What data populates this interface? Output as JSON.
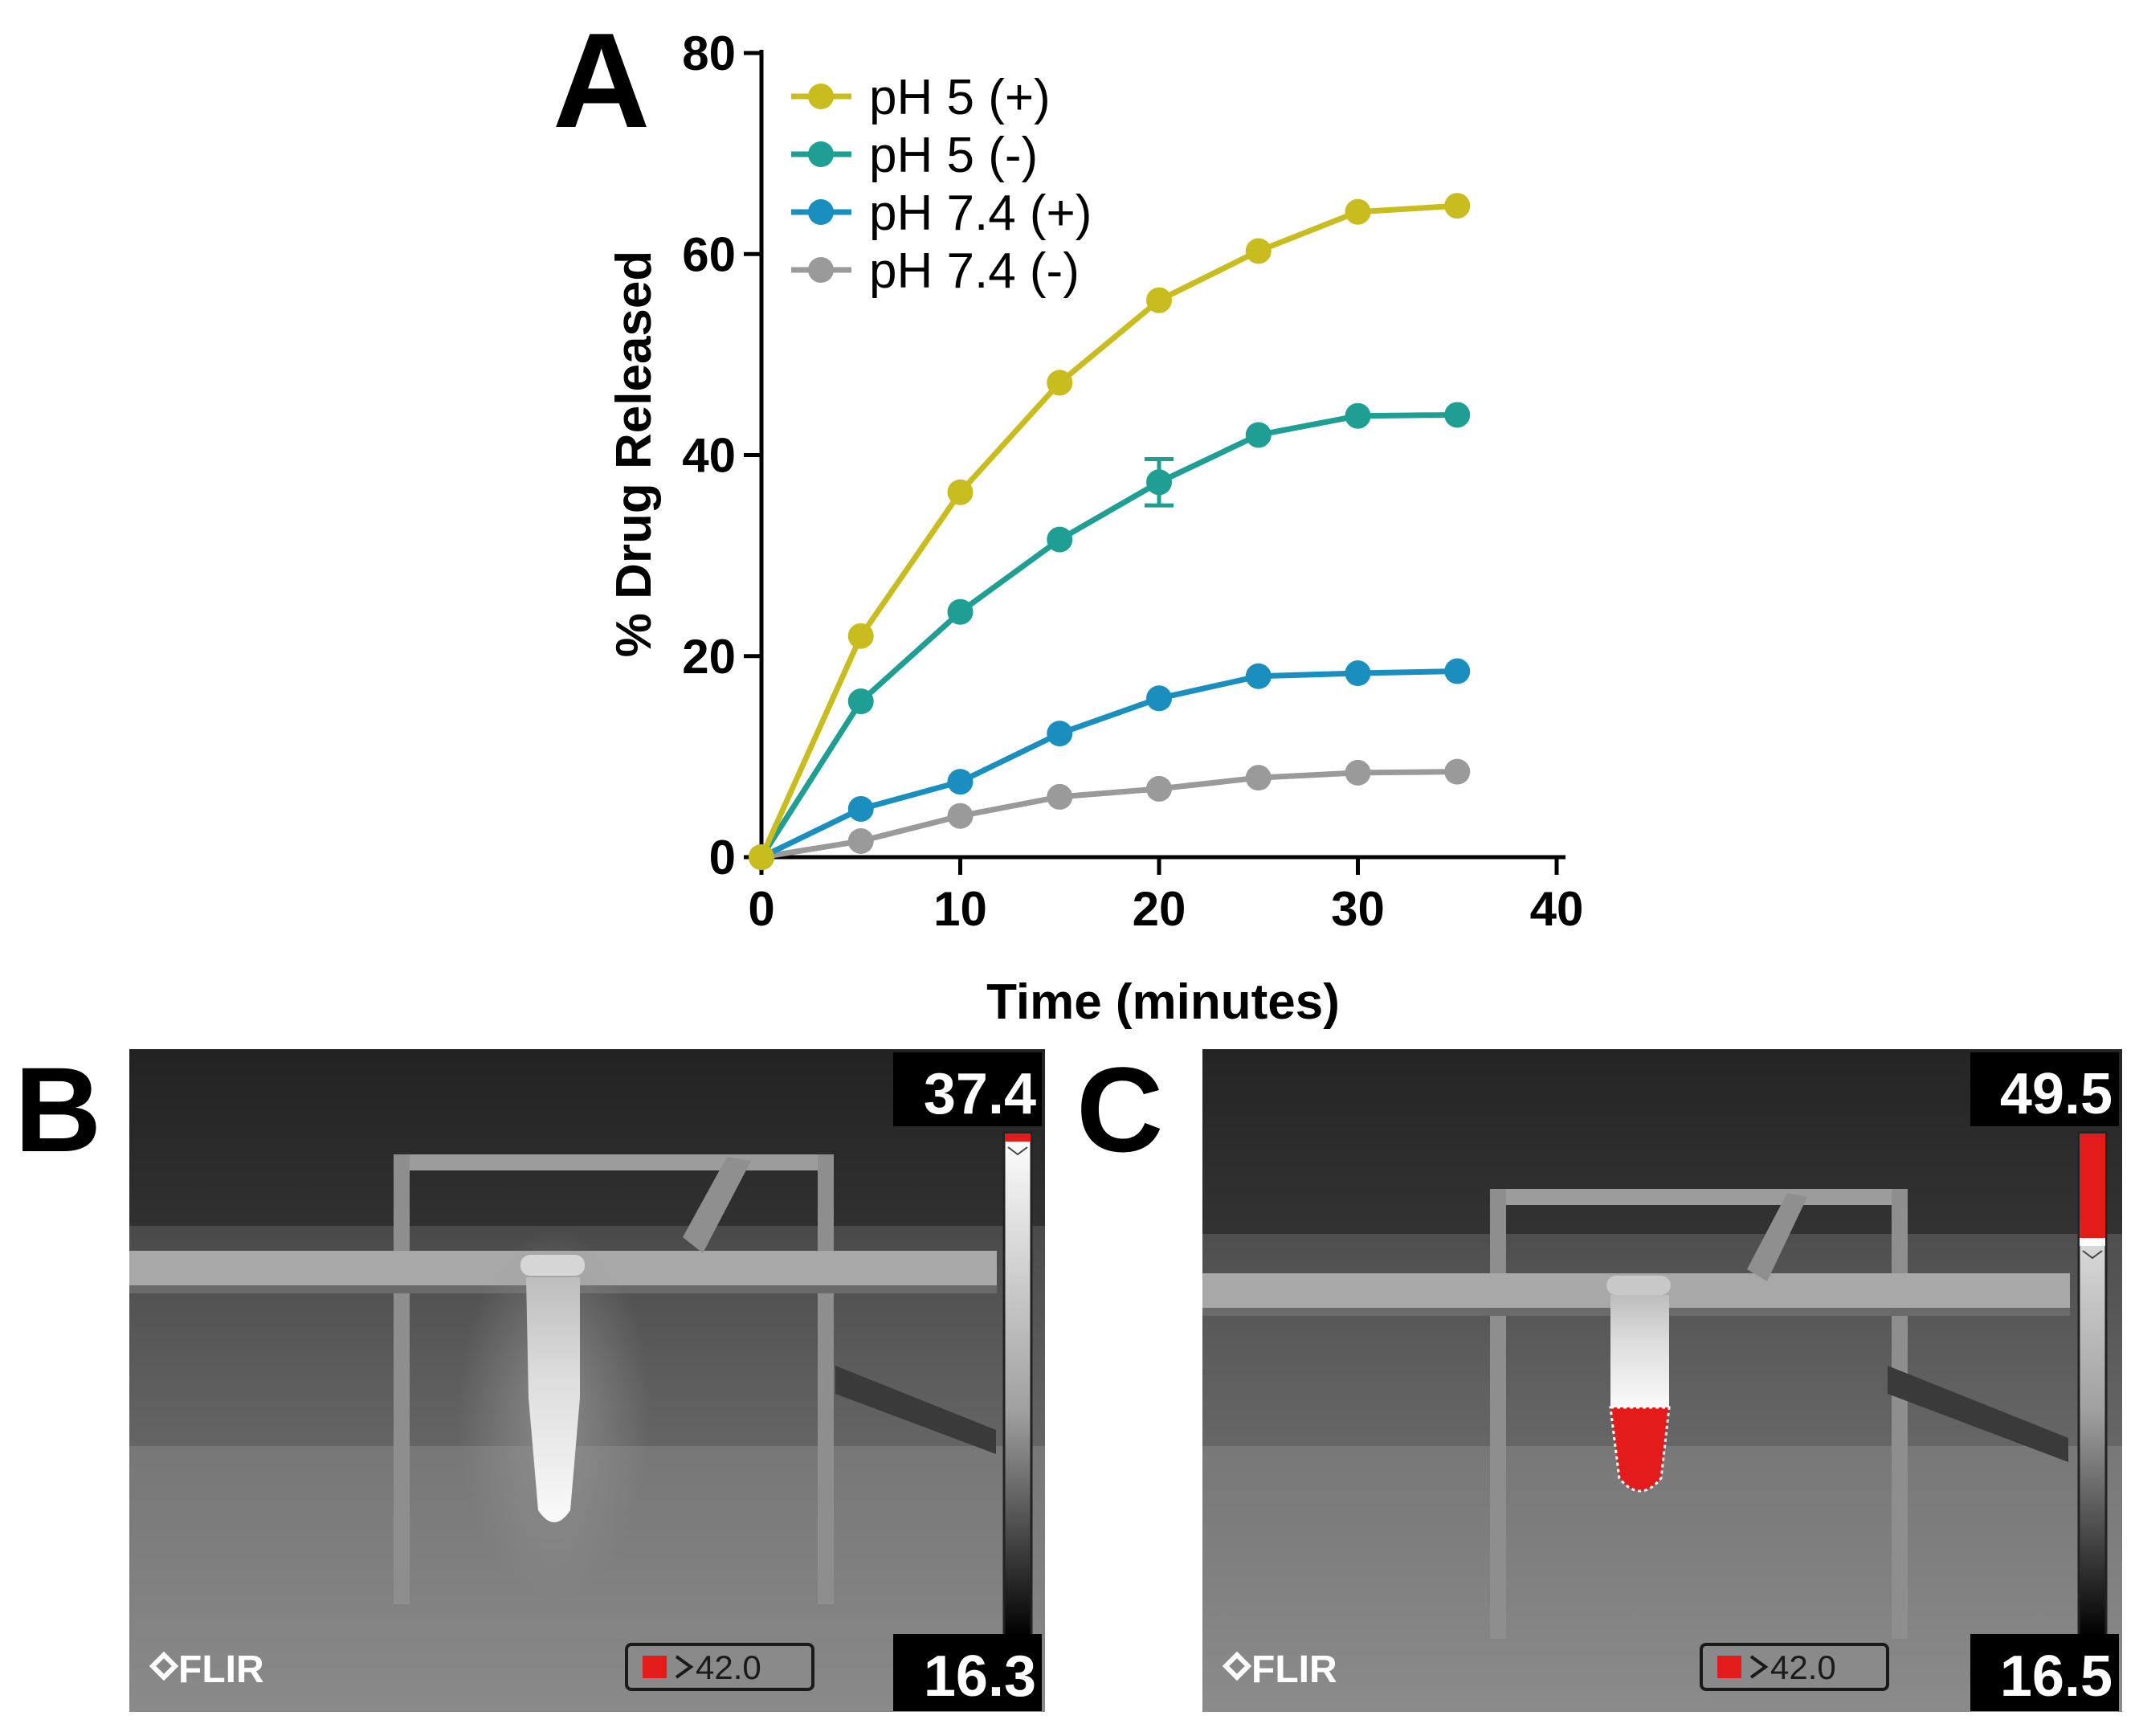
{
  "panels": {
    "a": {
      "label": "A"
    },
    "b": {
      "label": "B",
      "scale_max": "37.4",
      "scale_min": "16.3",
      "alarm": "42.0",
      "brand": "FLIR"
    },
    "c": {
      "label": "C",
      "scale_max": "49.5",
      "scale_min": "16.5",
      "alarm": "42.0",
      "brand": "FLIR"
    }
  },
  "chart_data": {
    "type": "line",
    "title": "",
    "xlabel": "Time (minutes)",
    "ylabel": "% Drug Released",
    "xlim": [
      0,
      40
    ],
    "ylim": [
      0,
      80
    ],
    "xticks": [
      0,
      10,
      20,
      30,
      40
    ],
    "yticks": [
      0,
      20,
      40,
      60,
      80
    ],
    "grid": false,
    "legend_position": "top-left",
    "x": [
      0,
      5,
      10,
      15,
      20,
      25,
      30,
      35
    ],
    "series": [
      {
        "name": "pH 5 (+)",
        "color": "#c8bc1f",
        "values": [
          0,
          22,
          36.3,
          47.2,
          55.4,
          60.3,
          64.2,
          64.8
        ]
      },
      {
        "name": "pH 5 (-)",
        "color": "#1f9e93",
        "values": [
          0,
          15.5,
          24.4,
          31.6,
          37.3,
          42.0,
          43.9,
          44.0
        ]
      },
      {
        "name": "pH 7.4 (+)",
        "color": "#1a8fbf",
        "values": [
          0,
          4.8,
          7.5,
          12.3,
          15.8,
          18.0,
          18.3,
          18.5
        ]
      },
      {
        "name": "pH 7.4 (-)",
        "color": "#9a9a9a",
        "values": [
          0,
          1.6,
          4.1,
          6.0,
          6.8,
          7.9,
          8.4,
          8.5
        ]
      }
    ]
  }
}
